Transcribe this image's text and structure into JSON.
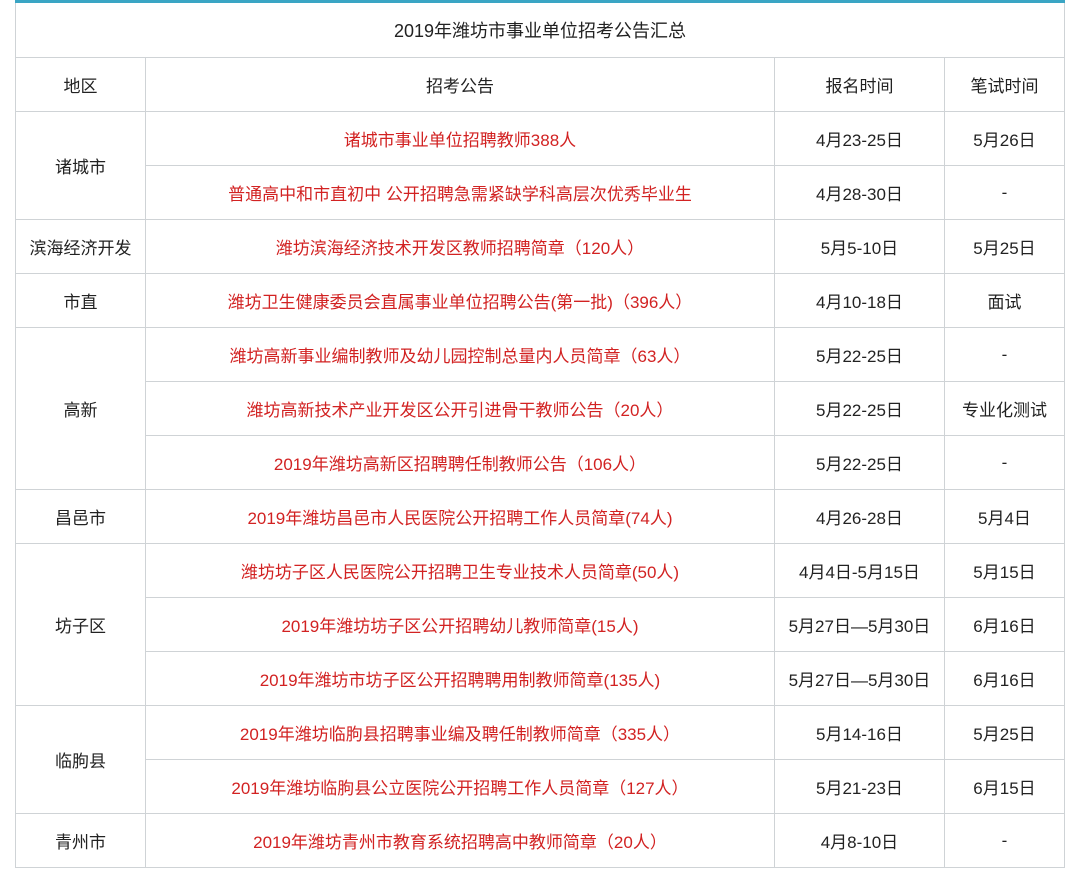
{
  "title": "2019年潍坊市事业单位招考公告汇总",
  "headers": {
    "region": "地区",
    "notice": "招考公告",
    "apply_time": "报名时间",
    "exam_time": "笔试时间"
  },
  "colors": {
    "border": "#cfd3d6",
    "top_border": "#3aa5c4",
    "link": "#d22222",
    "text": "#222222",
    "bg": "#ffffff"
  },
  "font_sizes": {
    "title": 18,
    "cell": 17
  },
  "regions": [
    {
      "name": "诸城市",
      "rows": [
        {
          "notice": "诸城市事业单位招聘教师388人",
          "apply": "4月23-25日",
          "exam": "5月26日"
        },
        {
          "notice": "普通高中和市直初中 公开招聘急需紧缺学科高层次优秀毕业生",
          "apply": "4月28-30日",
          "exam": "-"
        }
      ]
    },
    {
      "name": "滨海经济开发",
      "rows": [
        {
          "notice": "潍坊滨海经济技术开发区教师招聘简章（120人）",
          "apply": "5月5-10日",
          "exam": "5月25日"
        }
      ]
    },
    {
      "name": "市直",
      "rows": [
        {
          "notice": "潍坊卫生健康委员会直属事业单位招聘公告(第一批)（396人）",
          "apply": "4月10-18日",
          "exam": "面试"
        }
      ]
    },
    {
      "name": "高新",
      "rows": [
        {
          "notice": "潍坊高新事业编制教师及幼儿园控制总量内人员简章（63人）",
          "apply": "5月22-25日",
          "exam": "-"
        },
        {
          "notice": "潍坊高新技术产业开发区公开引进骨干教师公告（20人）",
          "apply": "5月22-25日",
          "exam": "专业化测试"
        },
        {
          "notice": "2019年潍坊高新区招聘聘任制教师公告（106人）",
          "apply": "5月22-25日",
          "exam": "-"
        }
      ]
    },
    {
      "name": "昌邑市",
      "rows": [
        {
          "notice": "2019年潍坊昌邑市人民医院公开招聘工作人员简章(74人)",
          "apply": "4月26-28日",
          "exam": "5月4日"
        }
      ]
    },
    {
      "name": "坊子区",
      "rows": [
        {
          "notice": "潍坊坊子区人民医院公开招聘卫生专业技术人员简章(50人)",
          "apply": "4月4日-5月15日",
          "exam": "5月15日"
        },
        {
          "notice": "2019年潍坊坊子区公开招聘幼儿教师简章(15人)",
          "apply": "5月27日—5月30日",
          "exam": "6月16日"
        },
        {
          "notice": "2019年潍坊市坊子区公开招聘聘用制教师简章(135人)",
          "apply": "5月27日—5月30日",
          "exam": "6月16日"
        }
      ]
    },
    {
      "name": "临朐县",
      "rows": [
        {
          "notice": "2019年潍坊临朐县招聘事业编及聘任制教师简章（335人）",
          "apply": "5月14-16日",
          "exam": "5月25日"
        },
        {
          "notice": "2019年潍坊临朐县公立医院公开招聘工作人员简章（127人）",
          "apply": "5月21-23日",
          "exam": "6月15日"
        }
      ]
    },
    {
      "name": "青州市",
      "rows": [
        {
          "notice": "2019年潍坊青州市教育系统招聘高中教师简章（20人）",
          "apply": "4月8-10日",
          "exam": "-"
        }
      ]
    }
  ]
}
